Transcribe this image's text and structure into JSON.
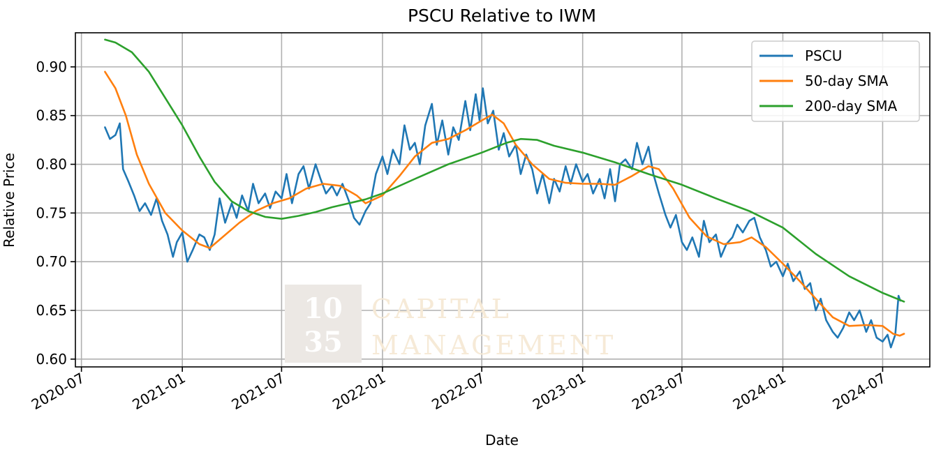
{
  "chart_data": {
    "type": "line",
    "title": "PSCU Relative to IWM",
    "xlabel": "Date",
    "ylabel": "Relative Price",
    "ylim": [
      0.592,
      0.935
    ],
    "xlim": [
      "2020-06-20",
      "2024-09-25"
    ],
    "grid": true,
    "legend_position": "top-right",
    "x_ticks": [
      "2020-07",
      "2021-01",
      "2021-07",
      "2022-01",
      "2022-07",
      "2023-01",
      "2023-07",
      "2024-01",
      "2024-07"
    ],
    "y_ticks": [
      "0.60",
      "0.65",
      "0.70",
      "0.75",
      "0.80",
      "0.85",
      "0.90"
    ],
    "watermark": {
      "number_top": "10",
      "number_bottom": "35",
      "word_top": "CAPITAL",
      "word_bottom": "MANAGEMENT"
    },
    "series": [
      {
        "name": "PSCU",
        "color": "#1f77b4",
        "points": [
          [
            "2020-08-13",
            0.838
          ],
          [
            "2020-08-22",
            0.826
          ],
          [
            "2020-09-01",
            0.83
          ],
          [
            "2020-09-09",
            0.842
          ],
          [
            "2020-09-15",
            0.795
          ],
          [
            "2020-09-25",
            0.782
          ],
          [
            "2020-10-05",
            0.768
          ],
          [
            "2020-10-15",
            0.752
          ],
          [
            "2020-10-25",
            0.76
          ],
          [
            "2020-11-05",
            0.748
          ],
          [
            "2020-11-15",
            0.765
          ],
          [
            "2020-11-25",
            0.742
          ],
          [
            "2020-12-05",
            0.728
          ],
          [
            "2020-12-15",
            0.705
          ],
          [
            "2020-12-22",
            0.72
          ],
          [
            "2021-01-01",
            0.73
          ],
          [
            "2021-01-10",
            0.7
          ],
          [
            "2021-01-20",
            0.712
          ],
          [
            "2021-02-01",
            0.728
          ],
          [
            "2021-02-10",
            0.725
          ],
          [
            "2021-02-20",
            0.712
          ],
          [
            "2021-03-01",
            0.728
          ],
          [
            "2021-03-10",
            0.765
          ],
          [
            "2021-03-20",
            0.74
          ],
          [
            "2021-04-01",
            0.76
          ],
          [
            "2021-04-10",
            0.745
          ],
          [
            "2021-04-20",
            0.768
          ],
          [
            "2021-05-01",
            0.752
          ],
          [
            "2021-05-10",
            0.78
          ],
          [
            "2021-05-20",
            0.76
          ],
          [
            "2021-06-01",
            0.77
          ],
          [
            "2021-06-10",
            0.755
          ],
          [
            "2021-06-20",
            0.772
          ],
          [
            "2021-07-01",
            0.765
          ],
          [
            "2021-07-10",
            0.79
          ],
          [
            "2021-07-20",
            0.76
          ],
          [
            "2021-08-01",
            0.79
          ],
          [
            "2021-08-10",
            0.798
          ],
          [
            "2021-08-20",
            0.775
          ],
          [
            "2021-09-01",
            0.8
          ],
          [
            "2021-09-10",
            0.785
          ],
          [
            "2021-09-20",
            0.77
          ],
          [
            "2021-10-01",
            0.778
          ],
          [
            "2021-10-10",
            0.768
          ],
          [
            "2021-10-20",
            0.78
          ],
          [
            "2021-11-01",
            0.762
          ],
          [
            "2021-11-10",
            0.745
          ],
          [
            "2021-11-20",
            0.738
          ],
          [
            "2021-12-01",
            0.752
          ],
          [
            "2021-12-10",
            0.76
          ],
          [
            "2021-12-20",
            0.79
          ],
          [
            "2022-01-01",
            0.808
          ],
          [
            "2022-01-10",
            0.79
          ],
          [
            "2022-01-20",
            0.815
          ],
          [
            "2022-02-01",
            0.8
          ],
          [
            "2022-02-10",
            0.84
          ],
          [
            "2022-02-20",
            0.815
          ],
          [
            "2022-03-01",
            0.822
          ],
          [
            "2022-03-10",
            0.8
          ],
          [
            "2022-03-20",
            0.84
          ],
          [
            "2022-04-01",
            0.862
          ],
          [
            "2022-04-10",
            0.82
          ],
          [
            "2022-04-20",
            0.845
          ],
          [
            "2022-05-01",
            0.81
          ],
          [
            "2022-05-10",
            0.838
          ],
          [
            "2022-05-20",
            0.825
          ],
          [
            "2022-06-01",
            0.865
          ],
          [
            "2022-06-10",
            0.835
          ],
          [
            "2022-06-20",
            0.872
          ],
          [
            "2022-06-27",
            0.845
          ],
          [
            "2022-07-03",
            0.878
          ],
          [
            "2022-07-12",
            0.842
          ],
          [
            "2022-07-22",
            0.855
          ],
          [
            "2022-08-01",
            0.815
          ],
          [
            "2022-08-10",
            0.832
          ],
          [
            "2022-08-20",
            0.808
          ],
          [
            "2022-09-01",
            0.82
          ],
          [
            "2022-09-10",
            0.79
          ],
          [
            "2022-09-20",
            0.81
          ],
          [
            "2022-10-01",
            0.795
          ],
          [
            "2022-10-10",
            0.77
          ],
          [
            "2022-10-20",
            0.79
          ],
          [
            "2022-11-01",
            0.76
          ],
          [
            "2022-11-10",
            0.785
          ],
          [
            "2022-11-20",
            0.772
          ],
          [
            "2022-12-01",
            0.798
          ],
          [
            "2022-12-10",
            0.78
          ],
          [
            "2022-12-20",
            0.8
          ],
          [
            "2023-01-01",
            0.782
          ],
          [
            "2023-01-10",
            0.79
          ],
          [
            "2023-01-20",
            0.77
          ],
          [
            "2023-02-01",
            0.785
          ],
          [
            "2023-02-10",
            0.765
          ],
          [
            "2023-02-20",
            0.795
          ],
          [
            "2023-03-01",
            0.762
          ],
          [
            "2023-03-10",
            0.8
          ],
          [
            "2023-03-20",
            0.805
          ],
          [
            "2023-04-01",
            0.795
          ],
          [
            "2023-04-10",
            0.822
          ],
          [
            "2023-04-20",
            0.8
          ],
          [
            "2023-05-01",
            0.818
          ],
          [
            "2023-05-10",
            0.79
          ],
          [
            "2023-05-20",
            0.77
          ],
          [
            "2023-06-01",
            0.748
          ],
          [
            "2023-06-10",
            0.735
          ],
          [
            "2023-06-20",
            0.748
          ],
          [
            "2023-07-01",
            0.72
          ],
          [
            "2023-07-10",
            0.712
          ],
          [
            "2023-07-20",
            0.725
          ],
          [
            "2023-08-01",
            0.705
          ],
          [
            "2023-08-10",
            0.742
          ],
          [
            "2023-08-20",
            0.72
          ],
          [
            "2023-09-01",
            0.728
          ],
          [
            "2023-09-10",
            0.705
          ],
          [
            "2023-09-20",
            0.718
          ],
          [
            "2023-10-01",
            0.725
          ],
          [
            "2023-10-10",
            0.738
          ],
          [
            "2023-10-20",
            0.73
          ],
          [
            "2023-11-01",
            0.742
          ],
          [
            "2023-11-10",
            0.745
          ],
          [
            "2023-11-20",
            0.725
          ],
          [
            "2023-12-01",
            0.712
          ],
          [
            "2023-12-10",
            0.695
          ],
          [
            "2023-12-20",
            0.7
          ],
          [
            "2024-01-01",
            0.685
          ],
          [
            "2024-01-10",
            0.698
          ],
          [
            "2024-01-20",
            0.68
          ],
          [
            "2024-02-01",
            0.69
          ],
          [
            "2024-02-10",
            0.672
          ],
          [
            "2024-02-20",
            0.678
          ],
          [
            "2024-03-01",
            0.65
          ],
          [
            "2024-03-10",
            0.662
          ],
          [
            "2024-03-20",
            0.64
          ],
          [
            "2024-04-01",
            0.628
          ],
          [
            "2024-04-10",
            0.622
          ],
          [
            "2024-04-20",
            0.632
          ],
          [
            "2024-05-01",
            0.648
          ],
          [
            "2024-05-10",
            0.64
          ],
          [
            "2024-05-20",
            0.65
          ],
          [
            "2024-06-01",
            0.628
          ],
          [
            "2024-06-10",
            0.64
          ],
          [
            "2024-06-20",
            0.622
          ],
          [
            "2024-07-01",
            0.618
          ],
          [
            "2024-07-10",
            0.625
          ],
          [
            "2024-07-16",
            0.612
          ],
          [
            "2024-07-24",
            0.625
          ],
          [
            "2024-07-30",
            0.665
          ],
          [
            "2024-08-02",
            0.66
          ]
        ]
      },
      {
        "name": "50-day SMA",
        "color": "#ff7f0e",
        "points": [
          [
            "2020-08-13",
            0.895
          ],
          [
            "2020-09-01",
            0.878
          ],
          [
            "2020-09-20",
            0.85
          ],
          [
            "2020-10-10",
            0.81
          ],
          [
            "2020-11-01",
            0.78
          ],
          [
            "2020-12-01",
            0.75
          ],
          [
            "2021-01-01",
            0.732
          ],
          [
            "2021-02-01",
            0.718
          ],
          [
            "2021-02-20",
            0.714
          ],
          [
            "2021-03-15",
            0.725
          ],
          [
            "2021-04-15",
            0.74
          ],
          [
            "2021-05-15",
            0.752
          ],
          [
            "2021-06-15",
            0.76
          ],
          [
            "2021-07-15",
            0.765
          ],
          [
            "2021-08-15",
            0.775
          ],
          [
            "2021-09-15",
            0.78
          ],
          [
            "2021-10-15",
            0.778
          ],
          [
            "2021-11-15",
            0.768
          ],
          [
            "2021-12-01",
            0.76
          ],
          [
            "2022-01-01",
            0.768
          ],
          [
            "2022-02-01",
            0.788
          ],
          [
            "2022-03-01",
            0.808
          ],
          [
            "2022-04-01",
            0.822
          ],
          [
            "2022-05-01",
            0.826
          ],
          [
            "2022-06-01",
            0.835
          ],
          [
            "2022-07-01",
            0.845
          ],
          [
            "2022-07-20",
            0.851
          ],
          [
            "2022-08-10",
            0.842
          ],
          [
            "2022-09-01",
            0.82
          ],
          [
            "2022-10-01",
            0.8
          ],
          [
            "2022-11-01",
            0.785
          ],
          [
            "2022-12-01",
            0.781
          ],
          [
            "2023-01-01",
            0.78
          ],
          [
            "2023-02-01",
            0.78
          ],
          [
            "2023-03-01",
            0.779
          ],
          [
            "2023-04-01",
            0.788
          ],
          [
            "2023-05-01",
            0.798
          ],
          [
            "2023-05-20",
            0.795
          ],
          [
            "2023-06-15",
            0.775
          ],
          [
            "2023-07-15",
            0.745
          ],
          [
            "2023-08-15",
            0.726
          ],
          [
            "2023-09-15",
            0.718
          ],
          [
            "2023-10-15",
            0.72
          ],
          [
            "2023-11-05",
            0.725
          ],
          [
            "2023-12-01",
            0.715
          ],
          [
            "2024-01-01",
            0.698
          ],
          [
            "2024-02-01",
            0.68
          ],
          [
            "2024-03-01",
            0.662
          ],
          [
            "2024-04-01",
            0.643
          ],
          [
            "2024-05-01",
            0.634
          ],
          [
            "2024-06-01",
            0.635
          ],
          [
            "2024-07-01",
            0.634
          ],
          [
            "2024-07-20",
            0.626
          ],
          [
            "2024-08-01",
            0.624
          ],
          [
            "2024-08-09",
            0.626
          ]
        ]
      },
      {
        "name": "200-day SMA",
        "color": "#2ca02c",
        "points": [
          [
            "2020-08-13",
            0.928
          ],
          [
            "2020-09-01",
            0.925
          ],
          [
            "2020-10-01",
            0.915
          ],
          [
            "2020-11-01",
            0.895
          ],
          [
            "2020-12-01",
            0.868
          ],
          [
            "2021-01-01",
            0.84
          ],
          [
            "2021-02-01",
            0.808
          ],
          [
            "2021-03-01",
            0.782
          ],
          [
            "2021-04-01",
            0.762
          ],
          [
            "2021-05-01",
            0.752
          ],
          [
            "2021-06-01",
            0.746
          ],
          [
            "2021-07-01",
            0.744
          ],
          [
            "2021-08-01",
            0.747
          ],
          [
            "2021-09-01",
            0.751
          ],
          [
            "2021-10-01",
            0.756
          ],
          [
            "2021-11-01",
            0.76
          ],
          [
            "2021-12-01",
            0.764
          ],
          [
            "2022-01-01",
            0.77
          ],
          [
            "2022-03-01",
            0.785
          ],
          [
            "2022-05-01",
            0.8
          ],
          [
            "2022-07-01",
            0.812
          ],
          [
            "2022-08-15",
            0.822
          ],
          [
            "2022-09-10",
            0.826
          ],
          [
            "2022-10-10",
            0.825
          ],
          [
            "2022-11-10",
            0.819
          ],
          [
            "2023-01-01",
            0.812
          ],
          [
            "2023-03-01",
            0.802
          ],
          [
            "2023-05-01",
            0.79
          ],
          [
            "2023-07-01",
            0.779
          ],
          [
            "2023-09-01",
            0.765
          ],
          [
            "2023-11-01",
            0.752
          ],
          [
            "2024-01-01",
            0.735
          ],
          [
            "2024-03-01",
            0.708
          ],
          [
            "2024-05-01",
            0.685
          ],
          [
            "2024-07-01",
            0.668
          ],
          [
            "2024-08-09",
            0.659
          ]
        ]
      }
    ]
  }
}
